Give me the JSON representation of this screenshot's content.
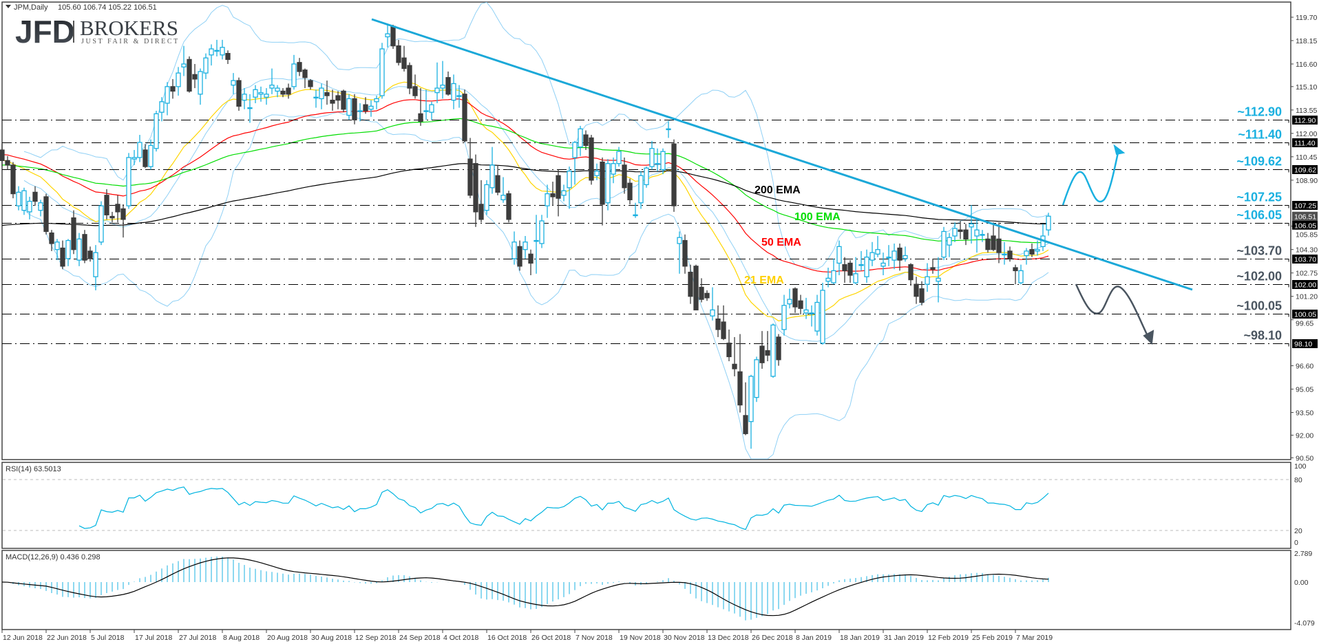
{
  "header": {
    "symbol": "JPM,Daily",
    "ohlc_text": "105.60 106.74 105.22 106.51"
  },
  "logo": {
    "mark": "JFD",
    "name": "BROKERS",
    "tagline": "JUST FAIR & DIRECT"
  },
  "chart_data": {
    "type": "candlestick",
    "symbol": "JPM",
    "timeframe": "Daily",
    "colors": {
      "bull": "#1ab0e0",
      "bear": "#3c3c3c",
      "bands": "#8fd0f5",
      "trendline": "#1ba8d8",
      "ema21": "#ffee00",
      "ema50": "#ff0000",
      "ema100": "#00dd00",
      "ema200": "#000000",
      "level_up": "#1ab0e0",
      "level_down": "#4a5560",
      "rsi": "#00b4e0",
      "macd_hist": "#1ab0e0",
      "macd_signal": "#000000"
    },
    "price_axis": {
      "range": [
        90.5,
        119.7
      ],
      "ticks": [
        "119.70",
        "118.15",
        "116.60",
        "115.10",
        "113.55",
        "112.00",
        "110.45",
        "108.90",
        "105.85",
        "104.30",
        "102.75",
        "101.20",
        "99.65",
        "96.60",
        "95.05",
        "93.50",
        "92.00",
        "90.50"
      ]
    },
    "dates": [
      "12 Jun 2018",
      "22 Jun 2018",
      "5 Jul 2018",
      "17 Jul 2018",
      "27 Jul 2018",
      "8 Aug 2018",
      "20 Aug 2018",
      "30 Aug 2018",
      "12 Sep 2018",
      "24 Sep 2018",
      "4 Oct 2018",
      "16 Oct 2018",
      "26 Oct 2018",
      "7 Nov 2018",
      "19 Nov 2018",
      "30 Nov 2018",
      "13 Dec 2018",
      "26 Dec 2018",
      "8 Jan 2019",
      "18 Jan 2019",
      "31 Jan 2019",
      "12 Feb 2019",
      "25 Feb 2019",
      "7 Mar 2019"
    ],
    "ohlc": [
      [
        110.9,
        111.3,
        109.8,
        110.2
      ],
      [
        110.2,
        110.5,
        109.6,
        109.9
      ],
      [
        109.9,
        110.1,
        107.7,
        108.0
      ],
      [
        107.2,
        108.5,
        106.9,
        108.1
      ],
      [
        106.9,
        108.4,
        106.6,
        108.2
      ],
      [
        106.8,
        107.8,
        106.3,
        107.5
      ],
      [
        108.1,
        108.5,
        107.2,
        107.5
      ],
      [
        106.9,
        107.6,
        106.5,
        107.4
      ],
      [
        107.8,
        108.0,
        105.3,
        105.5
      ],
      [
        105.4,
        105.6,
        104.2,
        104.7
      ],
      [
        104.3,
        105.0,
        103.6,
        104.8
      ],
      [
        104.4,
        104.9,
        103.0,
        103.2
      ],
      [
        103.7,
        105.0,
        103.2,
        104.9
      ],
      [
        106.4,
        106.9,
        104.0,
        104.3
      ],
      [
        103.6,
        105.4,
        103.2,
        105.0
      ],
      [
        105.3,
        105.6,
        103.4,
        103.6
      ],
      [
        104.2,
        104.5,
        103.5,
        103.7
      ],
      [
        102.5,
        104.6,
        101.6,
        104.1
      ],
      [
        104.8,
        107.5,
        104.6,
        107.2
      ],
      [
        107.9,
        108.3,
        106.3,
        106.6
      ],
      [
        106.5,
        106.8,
        106.1,
        106.4
      ],
      [
        107.3,
        107.9,
        106.1,
        106.8
      ],
      [
        107.0,
        107.3,
        105.1,
        106.3
      ],
      [
        107.2,
        110.7,
        107.0,
        110.4
      ],
      [
        110.3,
        110.9,
        109.9,
        110.4
      ],
      [
        110.4,
        111.9,
        110.1,
        111.4
      ],
      [
        110.9,
        111.3,
        109.7,
        109.8
      ],
      [
        109.8,
        111.6,
        109.6,
        111.2
      ],
      [
        111.0,
        113.5,
        110.8,
        113.3
      ],
      [
        113.4,
        114.4,
        112.8,
        114.1
      ],
      [
        114.0,
        115.4,
        113.2,
        115.1
      ],
      [
        115.1,
        115.6,
        114.3,
        114.8
      ],
      [
        115.1,
        116.4,
        114.5,
        116.0
      ],
      [
        116.4,
        117.8,
        115.8,
        116.6
      ],
      [
        116.9,
        117.1,
        114.7,
        114.8
      ],
      [
        115.9,
        116.6,
        115.0,
        115.6
      ],
      [
        114.6,
        116.3,
        113.9,
        116.1
      ],
      [
        116.0,
        117.3,
        115.6,
        117.0
      ],
      [
        117.2,
        117.9,
        116.5,
        117.6
      ],
      [
        117.5,
        118.2,
        117.1,
        117.5
      ],
      [
        117.2,
        118.2,
        116.9,
        117.7
      ],
      [
        117.3,
        117.5,
        116.6,
        116.9
      ],
      [
        115.2,
        116.0,
        114.6,
        115.5
      ],
      [
        115.5,
        115.7,
        113.5,
        113.8
      ],
      [
        114.2,
        115.0,
        113.6,
        114.6
      ],
      [
        113.7,
        114.6,
        112.7,
        113.7
      ],
      [
        114.4,
        115.2,
        114.0,
        114.9
      ],
      [
        114.6,
        115.1,
        114.1,
        114.7
      ],
      [
        114.4,
        115.0,
        113.9,
        114.6
      ],
      [
        115.0,
        116.3,
        114.6,
        115.2
      ],
      [
        114.8,
        115.2,
        114.4,
        115.0
      ],
      [
        114.8,
        115.0,
        114.4,
        114.6
      ],
      [
        115.0,
        115.3,
        114.3,
        114.6
      ],
      [
        115.1,
        117.2,
        114.9,
        116.6
      ],
      [
        116.7,
        117.0,
        115.8,
        116.1
      ],
      [
        116.2,
        116.3,
        115.0,
        115.7
      ],
      [
        115.5,
        115.6,
        114.9,
        115.1
      ],
      [
        114.4,
        114.9,
        113.7,
        114.4
      ],
      [
        114.3,
        115.3,
        113.6,
        115.0
      ],
      [
        114.7,
        115.5,
        113.9,
        114.5
      ],
      [
        114.2,
        114.9,
        113.5,
        114.0
      ],
      [
        114.5,
        114.8,
        113.6,
        114.2
      ],
      [
        114.8,
        114.9,
        113.4,
        113.6
      ],
      [
        113.2,
        114.6,
        112.9,
        114.3
      ],
      [
        114.3,
        114.6,
        112.6,
        112.9
      ],
      [
        113.5,
        114.0,
        112.8,
        113.5
      ],
      [
        113.9,
        114.4,
        113.3,
        113.5
      ],
      [
        113.6,
        114.2,
        113.1,
        113.8
      ],
      [
        114.1,
        114.5,
        113.6,
        114.3
      ],
      [
        114.5,
        118.0,
        114.3,
        117.6
      ],
      [
        118.4,
        119.2,
        117.7,
        118.6
      ],
      [
        119.1,
        119.2,
        117.6,
        117.8
      ],
      [
        117.8,
        118.2,
        116.5,
        116.7
      ],
      [
        117.0,
        117.8,
        116.1,
        116.3
      ],
      [
        116.5,
        116.7,
        114.6,
        115.0
      ],
      [
        115.1,
        115.9,
        114.3,
        114.5
      ],
      [
        113.3,
        115.0,
        112.5,
        112.8
      ],
      [
        113.5,
        114.9,
        112.9,
        113.5
      ],
      [
        113.4,
        114.1,
        112.9,
        113.9
      ],
      [
        114.7,
        116.7,
        114.0,
        115.0
      ],
      [
        115.0,
        116.8,
        114.3,
        115.2
      ],
      [
        115.7,
        116.1,
        114.5,
        114.6
      ],
      [
        114.2,
        115.9,
        113.6,
        115.3
      ],
      [
        114.5,
        115.2,
        113.7,
        114.5
      ],
      [
        114.6,
        114.9,
        111.4,
        111.5
      ],
      [
        110.3,
        111.7,
        107.7,
        107.9
      ],
      [
        110.0,
        110.6,
        105.8,
        106.8
      ],
      [
        107.3,
        108.9,
        106.1,
        106.3
      ],
      [
        106.9,
        108.9,
        106.6,
        108.6
      ],
      [
        108.4,
        111.1,
        108.0,
        109.9
      ],
      [
        109.2,
        109.9,
        107.9,
        108.1
      ],
      [
        107.6,
        109.1,
        107.4,
        107.9
      ],
      [
        108.0,
        108.2,
        106.1,
        106.3
      ],
      [
        103.7,
        105.5,
        103.3,
        104.8
      ],
      [
        104.5,
        104.9,
        102.9,
        103.2
      ],
      [
        104.3,
        105.2,
        103.7,
        104.8
      ],
      [
        104.0,
        104.3,
        102.6,
        103.4
      ],
      [
        104.9,
        106.6,
        102.7,
        104.9
      ],
      [
        104.7,
        106.6,
        104.4,
        106.2
      ],
      [
        107.2,
        108.6,
        106.4,
        108.0
      ],
      [
        108.0,
        108.8,
        107.2,
        107.8
      ],
      [
        109.2,
        109.6,
        106.5,
        107.7
      ],
      [
        107.9,
        108.6,
        107.5,
        108.2
      ],
      [
        108.4,
        109.8,
        107.0,
        109.5
      ],
      [
        110.4,
        111.5,
        108.6,
        111.4
      ],
      [
        111.1,
        112.5,
        110.5,
        112.3
      ],
      [
        111.9,
        112.2,
        110.9,
        111.2
      ],
      [
        111.7,
        111.9,
        108.6,
        108.9
      ],
      [
        109.2,
        110.0,
        108.9,
        109.5
      ],
      [
        110.1,
        110.4,
        105.9,
        107.3
      ],
      [
        107.4,
        110.3,
        106.9,
        110.0
      ],
      [
        109.3,
        110.4,
        108.7,
        110.0
      ],
      [
        110.0,
        111.1,
        109.8,
        110.8
      ],
      [
        109.9,
        110.4,
        108.0,
        108.4
      ],
      [
        108.7,
        109.0,
        107.3,
        107.6
      ],
      [
        106.6,
        107.4,
        106.4,
        106.6
      ],
      [
        107.4,
        109.5,
        107.0,
        109.2
      ],
      [
        108.6,
        109.8,
        108.4,
        109.7
      ],
      [
        109.8,
        111.5,
        109.6,
        111.0
      ],
      [
        110.0,
        111.0,
        109.5,
        110.0
      ],
      [
        109.6,
        111.0,
        109.3,
        110.8
      ],
      [
        112.3,
        112.8,
        111.7,
        112.3
      ],
      [
        111.3,
        111.6,
        106.8,
        107.2
      ],
      [
        104.7,
        105.5,
        102.7,
        105.1
      ],
      [
        104.9,
        105.3,
        102.7,
        103.2
      ],
      [
        102.8,
        103.3,
        100.7,
        101.2
      ],
      [
        103.2,
        103.3,
        100.3,
        100.3
      ],
      [
        101.8,
        102.4,
        100.8,
        101.0
      ],
      [
        101.4,
        101.6,
        100.9,
        101.1
      ],
      [
        99.9,
        101.8,
        99.6,
        100.3
      ],
      [
        99.7,
        100.6,
        98.5,
        99.0
      ],
      [
        99.5,
        100.6,
        98.3,
        98.4
      ],
      [
        98.1,
        99.0,
        96.9,
        97.2
      ],
      [
        96.7,
        98.5,
        95.9,
        96.4
      ],
      [
        96.2,
        98.7,
        93.5,
        94.0
      ],
      [
        93.3,
        95.5,
        92.0,
        92.1
      ],
      [
        92.9,
        96.0,
        91.1,
        95.9
      ],
      [
        94.5,
        97.2,
        94.2,
        97.0
      ],
      [
        97.9,
        98.9,
        96.4,
        96.8
      ],
      [
        97.6,
        98.9,
        96.9,
        97.3
      ],
      [
        95.9,
        99.4,
        95.8,
        99.3
      ],
      [
        98.5,
        98.7,
        96.6,
        97.0
      ],
      [
        99.0,
        101.3,
        98.6,
        100.6
      ],
      [
        100.7,
        101.7,
        100.4,
        101.0
      ],
      [
        101.7,
        101.8,
        100.1,
        100.5
      ],
      [
        100.9,
        101.3,
        100.0,
        100.4
      ],
      [
        100.1,
        101.1,
        99.7,
        100.3
      ],
      [
        100.1,
        100.6,
        99.2,
        100.1
      ],
      [
        98.9,
        101.3,
        98.6,
        100.8
      ],
      [
        98.1,
        102.1,
        98.0,
        101.6
      ],
      [
        102.2,
        103.1,
        101.8,
        102.4
      ],
      [
        102.1,
        103.7,
        102.0,
        102.9
      ],
      [
        103.4,
        104.9,
        102.6,
        104.5
      ],
      [
        103.3,
        103.8,
        102.1,
        102.9
      ],
      [
        103.4,
        103.6,
        102.1,
        102.6
      ],
      [
        102.1,
        103.8,
        102.0,
        102.7
      ],
      [
        103.3,
        104.2,
        102.9,
        103.3
      ],
      [
        102.5,
        104.3,
        102.1,
        103.8
      ],
      [
        103.6,
        104.8,
        103.2,
        104.1
      ],
      [
        104.0,
        105.2,
        103.8,
        104.3
      ],
      [
        103.2,
        104.1,
        102.6,
        103.4
      ],
      [
        103.8,
        104.6,
        103.2,
        103.8
      ],
      [
        103.6,
        104.7,
        103.0,
        104.2
      ],
      [
        104.4,
        104.7,
        102.9,
        103.6
      ],
      [
        103.7,
        104.5,
        103.5,
        103.9
      ],
      [
        103.3,
        103.4,
        101.9,
        102.3
      ],
      [
        102.0,
        102.5,
        100.7,
        101.2
      ],
      [
        101.7,
        102.2,
        100.6,
        100.8
      ],
      [
        102.0,
        103.4,
        101.5,
        102.5
      ],
      [
        103.1,
        103.7,
        102.7,
        103.0
      ],
      [
        102.2,
        103.8,
        100.8,
        102.4
      ],
      [
        103.8,
        105.8,
        103.6,
        105.5
      ],
      [
        104.6,
        105.4,
        103.8,
        105.1
      ],
      [
        105.2,
        106.1,
        104.8,
        105.7
      ],
      [
        105.6,
        106.2,
        105.0,
        105.5
      ],
      [
        105.6,
        106.0,
        104.6,
        105.0
      ],
      [
        105.8,
        107.25,
        104.7,
        106.0
      ],
      [
        105.2,
        106.3,
        104.1,
        105.6
      ],
      [
        105.3,
        105.6,
        104.8,
        105.3
      ],
      [
        105.0,
        105.4,
        104.1,
        104.3
      ],
      [
        105.2,
        106.1,
        104.2,
        104.3
      ],
      [
        105.0,
        106.1,
        103.4,
        104.1
      ],
      [
        104.0,
        104.8,
        103.3,
        104.0
      ],
      [
        104.2,
        104.5,
        103.5,
        103.7
      ],
      [
        103.1,
        103.3,
        102.0,
        102.9
      ],
      [
        102.1,
        103.3,
        102.0,
        102.9
      ],
      [
        103.9,
        104.4,
        103.3,
        104.2
      ],
      [
        104.3,
        104.7,
        103.8,
        104.0
      ],
      [
        104.2,
        104.9,
        103.9,
        104.3
      ],
      [
        104.5,
        106.0,
        104.2,
        105.2
      ],
      [
        105.6,
        106.74,
        105.22,
        106.51
      ]
    ],
    "current_price": "106.51",
    "emas": [
      {
        "label": "21 EMA",
        "period": 21,
        "color": "#ffd500",
        "start": 110.2
      },
      {
        "label": "50 EMA",
        "period": 50,
        "color": "#ff0000",
        "start": 110.6
      },
      {
        "label": "100 EMA",
        "period": 100,
        "color": "#00dd00",
        "start": 109.9
      },
      {
        "label": "200 EMA",
        "period": 200,
        "color": "#000000",
        "start": 105.9
      }
    ],
    "bollinger": {
      "period": 20,
      "deviations": 2
    },
    "levels": [
      {
        "value": 112.9,
        "box": "112.90",
        "label": "~112.90",
        "side": "up"
      },
      {
        "value": 111.4,
        "box": "111.40",
        "label": "~111.40",
        "side": "up"
      },
      {
        "value": 109.62,
        "box": "109.62",
        "label": "~109.62",
        "side": "up"
      },
      {
        "value": 107.25,
        "box": "107.25",
        "label": "~107.25",
        "side": "up"
      },
      {
        "value": 106.05,
        "box": "106.05",
        "label": "~106.05",
        "side": "up"
      },
      {
        "value": 103.7,
        "box": "103.70",
        "label": "~103.70",
        "side": "down"
      },
      {
        "value": 102.0,
        "box": "102.00",
        "label": "~102.00",
        "side": "down"
      },
      {
        "value": 100.05,
        "box": "100.05",
        "label": "~100.05",
        "side": "down"
      },
      {
        "value": 98.1,
        "box": "98.10",
        "label": "~98.10",
        "side": "down"
      }
    ],
    "rsi": {
      "title": "RSI(14) 63.5013",
      "period": 14,
      "range": [
        0,
        100
      ],
      "levels": [
        20,
        80
      ],
      "ticks": [
        "100",
        "80",
        "20",
        "0"
      ]
    },
    "macd": {
      "title": "MACD(12,26,9) 0.436 0.298",
      "fast": 12,
      "slow": 26,
      "signal": 9,
      "range": [
        -4.079,
        2.789
      ],
      "ticks": [
        "2.789",
        "0.00",
        "-4.079"
      ]
    }
  }
}
